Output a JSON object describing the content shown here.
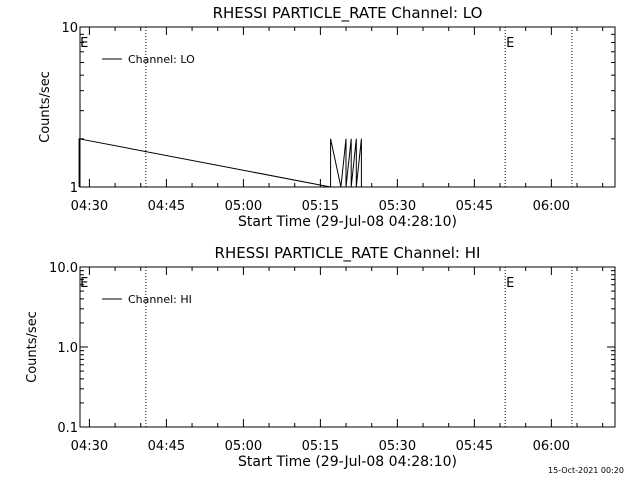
{
  "footer": {
    "timestamp": "15-Oct-2021 00:20"
  },
  "chart_data": [
    {
      "type": "line",
      "title": "RHESSI PARTICLE_RATE Channel: LO",
      "xlabel": "Start Time (29-Jul-08 04:28:10)",
      "ylabel": "Counts/sec",
      "x_ticks": [
        "04:30",
        "04:45",
        "05:00",
        "05:15",
        "05:30",
        "05:45",
        "06:00"
      ],
      "y_scale": "log",
      "ylim": [
        1,
        10
      ],
      "y_ticks": [
        "1",
        "10"
      ],
      "legend": {
        "position": "top-left",
        "entries": [
          "Channel: LO"
        ]
      },
      "markers": [
        {
          "label": "E",
          "time": "04:28"
        },
        {
          "label": "E",
          "time": "05:51"
        }
      ],
      "dotted_lines": [
        "04:41",
        "05:51",
        "06:04"
      ],
      "series": [
        {
          "name": "Channel: LO",
          "x": [
            "04:28",
            "04:28",
            "05:17",
            "05:17",
            "05:19",
            "05:20",
            "05:20",
            "05:21",
            "05:21",
            "05:22",
            "05:22",
            "05:23",
            "05:23"
          ],
          "values": [
            1,
            2,
            1,
            2,
            1,
            2,
            1,
            2,
            1,
            2,
            1,
            2,
            1
          ]
        }
      ]
    },
    {
      "type": "line",
      "title": "RHESSI PARTICLE_RATE Channel: HI",
      "xlabel": "Start Time (29-Jul-08 04:28:10)",
      "ylabel": "Counts/sec",
      "x_ticks": [
        "04:30",
        "04:45",
        "05:00",
        "05:15",
        "05:30",
        "05:45",
        "06:00"
      ],
      "y_scale": "log",
      "ylim": [
        0.1,
        10
      ],
      "y_ticks": [
        "0.1",
        "1.0",
        "10.0"
      ],
      "legend": {
        "position": "top-left",
        "entries": [
          "Channel: HI"
        ]
      },
      "markers": [
        {
          "label": "E",
          "time": "04:28"
        },
        {
          "label": "E",
          "time": "05:51"
        }
      ],
      "dotted_lines": [
        "04:41",
        "05:51",
        "06:04"
      ],
      "series": [
        {
          "name": "Channel: HI",
          "x": [],
          "values": []
        }
      ]
    }
  ]
}
